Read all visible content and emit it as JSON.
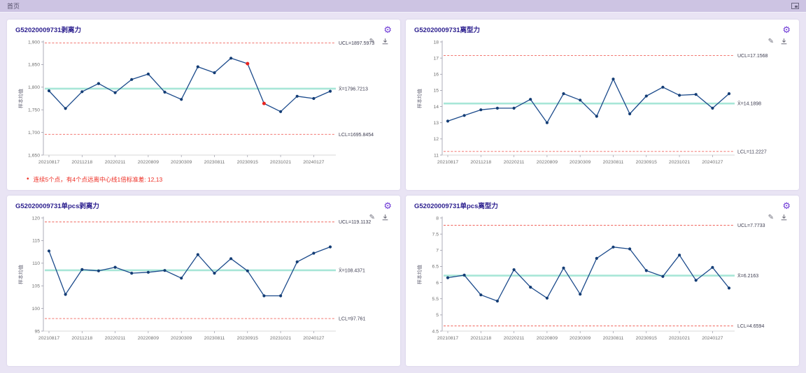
{
  "topbar": {
    "breadcrumb": "首页"
  },
  "icons": {
    "gear": "⚙",
    "edit": "✎",
    "bullet": "•"
  },
  "colors": {
    "accent_purple": "#6f3bd6",
    "title_indigo": "#2b1e8e",
    "series_navy": "#1b4a8b",
    "marker_navy": "#143d75",
    "limit_red": "#f0625a",
    "center_teal": "#a7e6d7",
    "alert_red": "#e8241f",
    "axis_gray": "#707070",
    "label_dark": "#3c3c50",
    "warning_red": "#ee2e24"
  },
  "chart_data": [
    {
      "type": "line",
      "title": "G52020009731剥离力",
      "ylabel": "样本均值",
      "ylim": [
        1650,
        1900
      ],
      "ytick_labels": [
        "1,900",
        "1,850",
        "1,800",
        "1,750",
        "1,700",
        "1,650"
      ],
      "x_labels": [
        "20210817",
        "20211218",
        "20220211",
        "20220809",
        "20230309",
        "20230811",
        "20230915",
        "20231021",
        "20240127"
      ],
      "values": [
        1792,
        1753,
        1790,
        1808,
        1788,
        1817,
        1829,
        1789,
        1773,
        1845,
        1832,
        1864,
        1852,
        1764,
        1746,
        1780,
        1775,
        1791
      ],
      "ucl": {
        "label": "UCL=1897.5973",
        "value": 1897.5973
      },
      "center": {
        "label": "X̄=1796.7213",
        "value": 1796.7213
      },
      "lcl": {
        "label": "LCL=1695.8454",
        "value": 1695.8454
      },
      "alert_indices": [
        12,
        13
      ],
      "warning": "连续5个点，有4个点远离中心线1倍标准差: 12,13",
      "legend": "none",
      "grid": false
    },
    {
      "type": "line",
      "title": "G52020009731离型力",
      "ylabel": "样本均值",
      "ylim": [
        11,
        18
      ],
      "ytick_labels": [
        "18",
        "17",
        "16",
        "15",
        "14",
        "13",
        "12",
        "11"
      ],
      "x_labels": [
        "20210817",
        "20211218",
        "20220211",
        "20220809",
        "20230309",
        "20230811",
        "20230915",
        "20231021",
        "20240127"
      ],
      "values": [
        13.1,
        13.45,
        13.8,
        13.9,
        13.9,
        14.45,
        13.0,
        14.8,
        14.4,
        13.4,
        15.7,
        13.55,
        14.65,
        15.2,
        14.7,
        14.75,
        13.9,
        14.8
      ],
      "ucl": {
        "label": "UCL=17.1568",
        "value": 17.1568
      },
      "center": {
        "label": "X̄=14.1898",
        "value": 14.1898
      },
      "lcl": {
        "label": "LCL=11.2227",
        "value": 11.2227
      },
      "alert_indices": [],
      "legend": "none",
      "grid": false
    },
    {
      "type": "line",
      "title": "G52020009731单pcs剥离力",
      "ylabel": "样本均值",
      "ylim": [
        95,
        120
      ],
      "ytick_labels": [
        "120",
        "115",
        "110",
        "105",
        "100",
        "95"
      ],
      "x_labels": [
        "20210817",
        "20211218",
        "20220211",
        "20220809",
        "20230309",
        "20230811",
        "20230915",
        "20231021",
        "20240127"
      ],
      "values": [
        112.7,
        103.1,
        108.6,
        108.3,
        109.1,
        107.8,
        108.0,
        108.4,
        106.7,
        111.9,
        107.8,
        111.0,
        108.3,
        102.8,
        102.8,
        110.3,
        112.2,
        113.6
      ],
      "ucl": {
        "label": "UCL=119.1132",
        "value": 119.1132
      },
      "center": {
        "label": "X̄=108.4371",
        "value": 108.4371
      },
      "lcl": {
        "label": "LCL=97.761",
        "value": 97.761
      },
      "alert_indices": [],
      "legend": "none",
      "grid": false
    },
    {
      "type": "line",
      "title": "G52020009731单pcs离型力",
      "ylabel": "样本均值",
      "ylim": [
        4.5,
        8
      ],
      "ytick_labels": [
        "8",
        "7.5",
        "7",
        "6.5",
        "6",
        "5.5",
        "5",
        "4.5"
      ],
      "x_labels": [
        "20210817",
        "20211218",
        "20220211",
        "20220809",
        "20230309",
        "20230811",
        "20230915",
        "20231021",
        "20240127"
      ],
      "values": [
        6.15,
        6.23,
        5.62,
        5.43,
        6.4,
        5.86,
        5.52,
        6.45,
        5.64,
        6.75,
        7.1,
        7.04,
        6.37,
        6.19,
        6.85,
        6.07,
        6.47,
        5.83
      ],
      "ucl": {
        "label": "UCL=7.7733",
        "value": 7.7733
      },
      "center": {
        "label": "X̄=6.2163",
        "value": 6.2163
      },
      "lcl": {
        "label": "LCL=4.6594",
        "value": 4.6594
      },
      "alert_indices": [],
      "legend": "none",
      "grid": false
    }
  ]
}
